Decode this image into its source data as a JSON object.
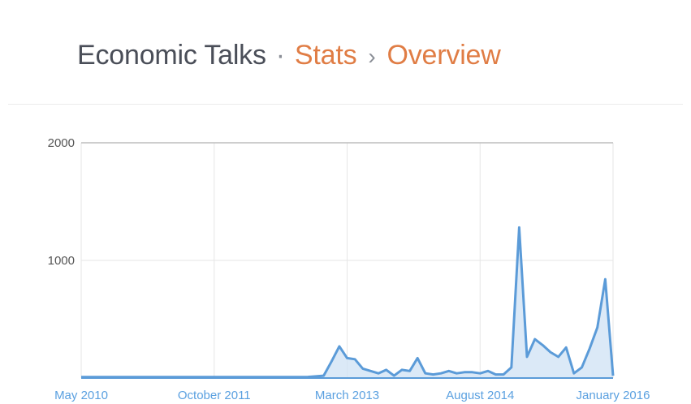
{
  "header": {
    "site_name": "Economic Talks",
    "separator": "·",
    "breadcrumb": [
      {
        "label": "Stats"
      },
      {
        "label": "Overview"
      }
    ],
    "chevron": "›"
  },
  "colors": {
    "series": "#5b9bd8",
    "fill": "#cfe1f4",
    "link": "#e07d45",
    "axis_label": "#5aa0e0"
  },
  "chart_data": {
    "type": "area",
    "title": "",
    "xlabel": "",
    "ylabel": "",
    "ylim": [
      0,
      2000
    ],
    "yticks": [
      {
        "value": 2000,
        "label": "2000"
      },
      {
        "value": 1000,
        "label": "1000"
      }
    ],
    "xlim": [
      "2010-05",
      "2016-01"
    ],
    "xticks": [
      {
        "value": "2010-05",
        "label": "May 2010"
      },
      {
        "value": "2011-10",
        "label": "October 2011"
      },
      {
        "value": "2013-03",
        "label": "March 2013"
      },
      {
        "value": "2014-08",
        "label": "August 2014"
      },
      {
        "value": "2016-01",
        "label": "January 2016"
      }
    ],
    "grid": true,
    "series": [
      {
        "x": [
          "2010-05",
          "2010-12",
          "2011-06",
          "2011-12",
          "2012-06",
          "2012-10",
          "2012-12",
          "2013-01",
          "2013-02",
          "2013-03",
          "2013-04",
          "2013-05",
          "2013-06",
          "2013-07",
          "2013-08",
          "2013-09",
          "2013-10",
          "2013-11",
          "2013-12",
          "2014-01",
          "2014-02",
          "2014-03",
          "2014-04",
          "2014-05",
          "2014-06",
          "2014-07",
          "2014-08",
          "2014-09",
          "2014-10",
          "2014-11",
          "2014-12",
          "2015-01",
          "2015-02",
          "2015-03",
          "2015-04",
          "2015-05",
          "2015-06",
          "2015-07",
          "2015-08",
          "2015-09",
          "2015-10",
          "2015-11",
          "2015-12",
          "2016-01"
        ],
        "y": [
          8,
          8,
          8,
          8,
          8,
          10,
          20,
          140,
          270,
          170,
          160,
          80,
          60,
          40,
          70,
          20,
          70,
          60,
          170,
          40,
          30,
          40,
          60,
          40,
          50,
          50,
          40,
          60,
          30,
          30,
          90,
          1280,
          180,
          330,
          280,
          220,
          180,
          260,
          40,
          90,
          250,
          430,
          840,
          20
        ]
      }
    ]
  }
}
